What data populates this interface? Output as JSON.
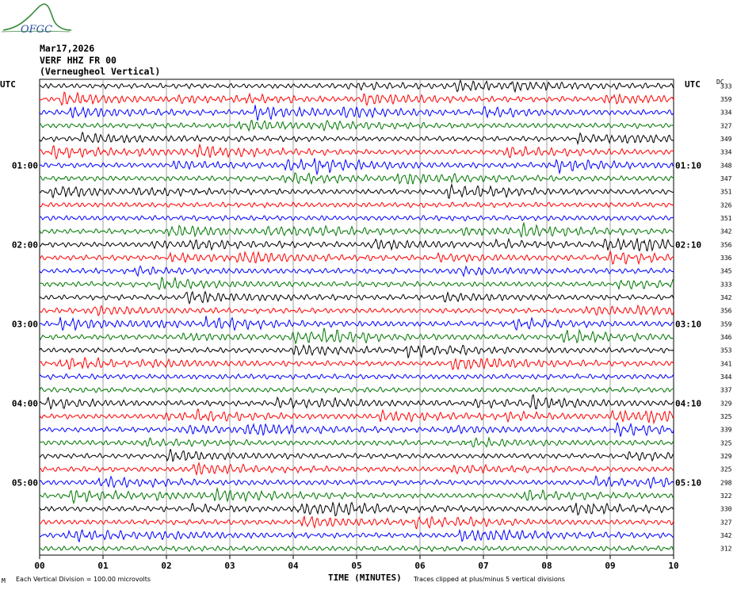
{
  "logo": {
    "text": "OFGC"
  },
  "header": {
    "date": "Mar17,2026",
    "station": "VERF HHZ FR 00",
    "location": "(Verneugheol Vertical)"
  },
  "axis": {
    "left_unit": "UTC",
    "right_unit": "UTC",
    "dc_label": "DC",
    "xlabel": "TIME (MINUTES)",
    "x_ticks": [
      "00",
      "01",
      "02",
      "03",
      "04",
      "05",
      "06",
      "07",
      "08",
      "09",
      "10"
    ],
    "left_hours": [
      "01:00",
      "02:00",
      "03:00",
      "04:00",
      "05:00"
    ],
    "right_hours": [
      "01:10",
      "02:10",
      "03:10",
      "04:10",
      "05:10"
    ]
  },
  "footer": {
    "small_mark": "M",
    "left": "Each Vertical Division =  100.00 microvolts",
    "right": "Traces clipped at plus/minus 5 vertical divisions"
  },
  "colors": {
    "cycle": [
      "#000000",
      "#ff0000",
      "#0000ff",
      "#007700"
    ],
    "grid": "#888888"
  },
  "chart_data": {
    "type": "line",
    "title": "",
    "xlabel": "TIME (MINUTES)",
    "xlim": [
      0,
      10
    ],
    "trace_count": 36,
    "dc_offsets": [
      333,
      359,
      334,
      327,
      349,
      334,
      348,
      347,
      351,
      326,
      351,
      342,
      356,
      336,
      345,
      333,
      342,
      356,
      359,
      346,
      353,
      341,
      344,
      337,
      329,
      325,
      339,
      325,
      329,
      325,
      298,
      322,
      330,
      327,
      342,
      312
    ]
  }
}
